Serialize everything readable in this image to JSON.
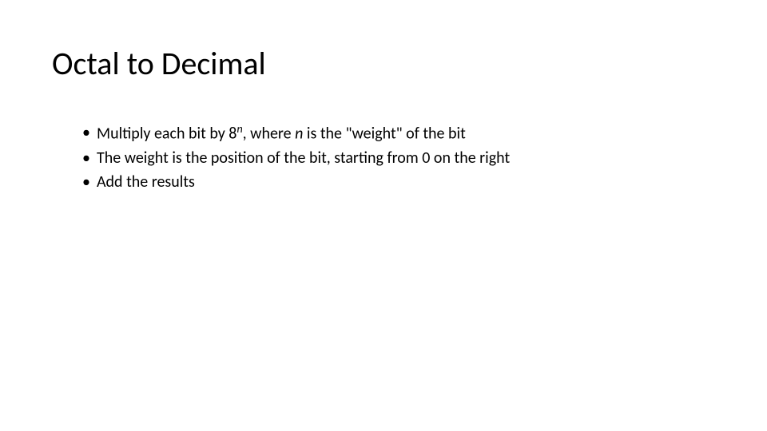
{
  "title": "Octal to Decimal",
  "bullets": [
    {
      "prefix": "Multiply each bit by 8",
      "superscript": "n",
      "mid": ", where ",
      "italic_word": "n",
      "suffix": " is the \"weight\" of the bit"
    },
    {
      "text": "The weight is the position of the bit, starting from 0 on the right"
    },
    {
      "text": "Add the results"
    }
  ],
  "bullet_marker": "•",
  "colors": {
    "background": "#ffffff",
    "text": "#000000"
  },
  "typography": {
    "title_fontsize": 40,
    "title_weight": 300,
    "body_fontsize": 20
  }
}
